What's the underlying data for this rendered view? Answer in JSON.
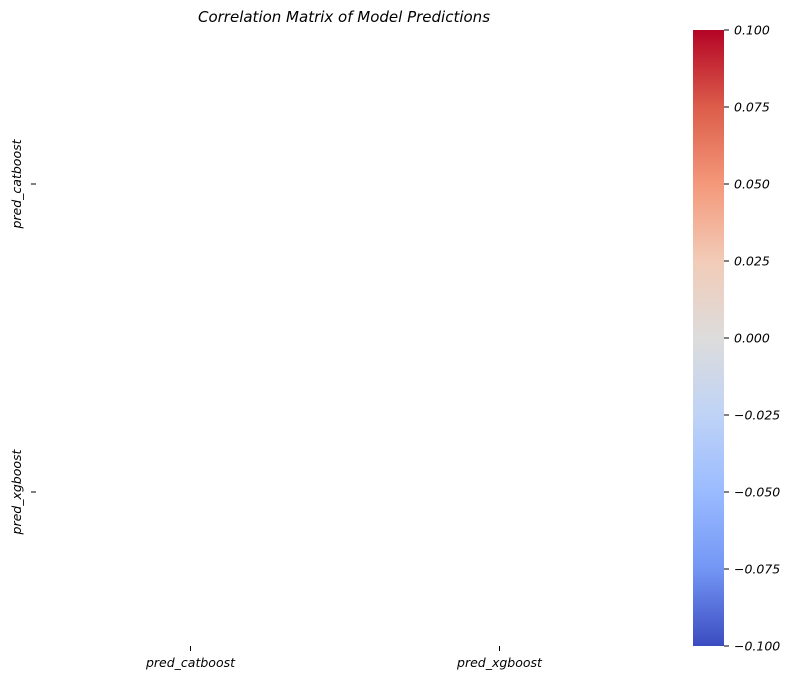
{
  "chart_data": {
    "type": "heatmap",
    "title": "Correlation Matrix of Model Predictions",
    "xlabel": "",
    "ylabel": "",
    "x_categories": [
      "pred_catboost",
      "pred_xgboost"
    ],
    "y_categories": [
      "pred_catboost",
      "pred_xgboost"
    ],
    "values": [
      [
        null,
        null
      ],
      [
        null,
        null
      ]
    ],
    "colormap": "coolwarm",
    "colorbar": {
      "vmin": -0.1,
      "vmax": 0.1,
      "ticks": [
        0.1,
        0.075,
        0.05,
        0.025,
        0.0,
        -0.025,
        -0.05,
        -0.075,
        -0.1
      ],
      "tick_labels": [
        "0.100",
        "0.075",
        "0.050",
        "0.025",
        "0.000",
        "−0.025",
        "−0.050",
        "−0.075",
        "−0.100"
      ],
      "location": "right",
      "colors": [
        "#b40426",
        "#dc5d4a",
        "#f4987a",
        "#f2cbb7",
        "#dddcdc",
        "#bfd3f6",
        "#9abbff",
        "#7396f5",
        "#3b4cc0"
      ]
    },
    "grid": false,
    "background": "#ffffff"
  }
}
